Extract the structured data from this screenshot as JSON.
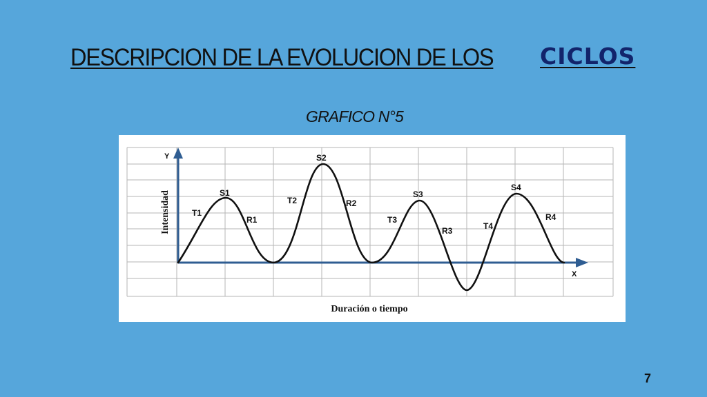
{
  "slide": {
    "title_main": "DESCRIPCION DE LA EVOLUCION DE LOS",
    "title_accent": "CICLOS",
    "subtitle": "GRAFICO N°5",
    "page_number": "7"
  },
  "diagram": {
    "y_axis_letter": "Y",
    "x_axis_letter": "X",
    "y_axis_label": "Intensidad",
    "x_axis_label": "Duración o tiempo",
    "point_labels": {
      "t1": "T1",
      "s1": "S1",
      "r1": "R1",
      "t2": "T2",
      "s2": "S2",
      "r2": "R2",
      "t3": "T3",
      "s3": "S3",
      "r3": "R3",
      "t4": "T4",
      "s4": "S4",
      "r4": "R4"
    },
    "colors": {
      "axis": "#2f5d92",
      "curve": "#111111",
      "grid": "#b5b5b5"
    }
  }
}
